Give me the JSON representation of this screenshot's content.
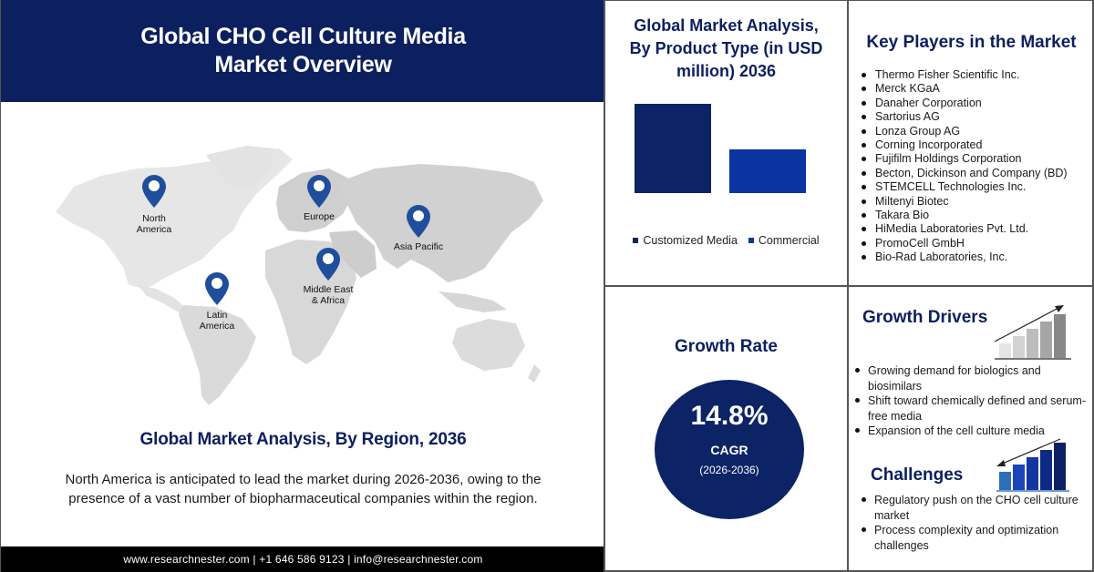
{
  "header": {
    "title_line1": "Global CHO Cell Culture Media",
    "title_line2": "Market Overview"
  },
  "map": {
    "regions": [
      {
        "name": "North America",
        "line1": "North",
        "line2": "America"
      },
      {
        "name": "Europe",
        "line1": "Europe",
        "line2": ""
      },
      {
        "name": "Asia Pacific",
        "line1": "Asia Pacific",
        "line2": ""
      },
      {
        "name": "Middle East & Africa",
        "line1": "Middle East",
        "line2": "& Africa"
      },
      {
        "name": "Latin America",
        "line1": "Latin",
        "line2": "America"
      }
    ],
    "pin_color": "#1f4e9c",
    "land_color": "#dcdcdc"
  },
  "region_analysis": {
    "title": "Global Market Analysis, By Region, 2036",
    "description_line1": "North America is anticipated to lead the market during 2026-2036, owing to the",
    "description_line2": "presence of a vast number of biopharmaceutical companies within the region."
  },
  "footer": {
    "text": "www.researchnester.com | +1 646 586 9123 | info@researchnester.com"
  },
  "product_chart": {
    "title_line1": "Global Market Analysis,",
    "title_line2": "By Product Type (in USD",
    "title_line3": "million) 2036"
  },
  "chart_data": {
    "type": "bar",
    "title": "Global Market Analysis, By Product Type (in USD million) 2036",
    "categories": [
      "Customized Media",
      "Commercial"
    ],
    "values": [
      100,
      49
    ],
    "colors": [
      "#0c2466",
      "#0a35a0"
    ],
    "xlabel": "",
    "ylabel": "",
    "grid": false,
    "axes_visible": false,
    "legend_position": "bottom",
    "note": "relative bar heights estimated; no axis scale shown"
  },
  "key_players": {
    "title": "Key Players in the Market",
    "items": [
      "Thermo Fisher Scientific Inc.",
      "Merck KGaA",
      "Danaher Corporation",
      "Sartorius AG",
      "Lonza Group AG",
      "Corning Incorporated",
      "Fujifilm Holdings Corporation",
      "Becton, Dickinson and Company (BD)",
      "STEMCELL Technologies Inc.",
      "Miltenyi Biotec",
      "Takara Bio",
      "HiMedia Laboratories Pvt. Ltd.",
      "PromoCell GmbH",
      "Bio-Rad Laboratories, Inc."
    ]
  },
  "growth_rate": {
    "title": "Growth Rate",
    "value": "14.8%",
    "label": "CAGR",
    "period": "(2026-2036)"
  },
  "growth_drivers": {
    "title": "Growth Drivers",
    "items": [
      "Growing demand for biologics and biosimilars",
      "Shift toward chemically defined and serum-free media",
      "Expansion of the cell culture media"
    ]
  },
  "challenges": {
    "title": "Challenges",
    "items": [
      "Regulatory push on the CHO cell culture market",
      "Process complexity and optimization challenges"
    ]
  },
  "colors": {
    "navy": "#0c1f5f",
    "footer_bg": "#000000",
    "border": "#555555"
  }
}
